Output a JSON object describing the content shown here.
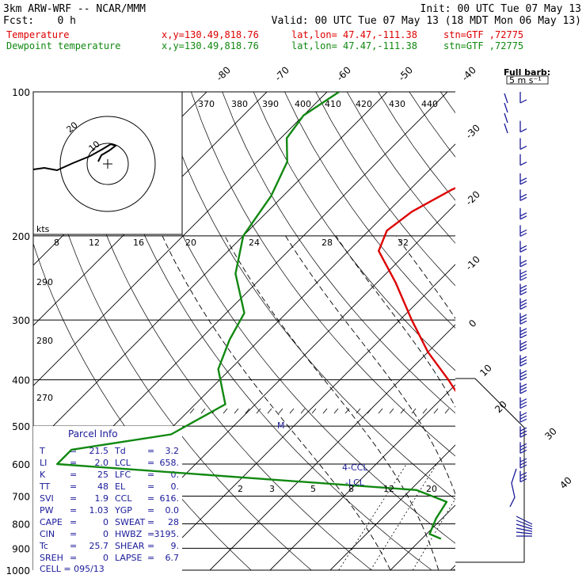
{
  "header": {
    "model": "3km ARW-WRF -- NCAR/MMM",
    "init": "Init: 00 UTC Tue 07 May 13",
    "fcst_label": "Fcst:",
    "fcst_value": "0 h",
    "valid": "Valid: 00 UTC Tue 07 May 13 (18 MDT Mon 06 May 13)"
  },
  "legend": [
    {
      "name": "Temperature",
      "xy": "x,y=130.49,818.76",
      "latlon": "lat,lon= 47.47,-111.38",
      "stn": "stn=GTF ,72775",
      "color": "#dd0000"
    },
    {
      "name": "Dewpoint temperature",
      "xy": "x,y=130.49,818.76",
      "latlon": "lat,lon= 47.47,-111.38",
      "stn": "stn=GTF ,72775",
      "color": "#118811"
    }
  ],
  "barb_key": {
    "title": "Full barb:",
    "value": "5 m s⁻¹"
  },
  "hodograph": {
    "units": "kts",
    "ring_labels": [
      "20",
      "10"
    ]
  },
  "parcel_info": {
    "title": "Parcel Info",
    "rows": [
      [
        "T",
        "21.5",
        "Td",
        "3.2"
      ],
      [
        "LI",
        "2.0",
        "LCL",
        "658."
      ],
      [
        "K",
        "25",
        "LFC",
        "0."
      ],
      [
        "TT",
        "48",
        "EL",
        "0."
      ],
      [
        "SVI",
        "1.9",
        "CCL",
        "616."
      ],
      [
        "PW",
        "1.03",
        "YGP",
        "0.0"
      ],
      [
        "CAPE",
        "0",
        "SWEAT",
        "28"
      ],
      [
        "CIN",
        "0",
        "HWBZ",
        "3195."
      ],
      [
        "Tc",
        "25.7",
        "SHEAR",
        "9."
      ],
      [
        "SREH",
        "0",
        "LAPSE",
        "6.7"
      ]
    ],
    "cell": "CELL = 095/13"
  },
  "markers": {
    "ccl": "CCL",
    "lcl": "LCL",
    "m": "M"
  },
  "chart_data": {
    "type": "line",
    "title": "",
    "xlabel": "Temperature",
    "ylabel": "Pressure",
    "y_scale": "log",
    "ylim": [
      1000,
      100
    ],
    "pressure_ticks": [
      "100",
      "200",
      "300",
      "400",
      "500",
      "600",
      "700",
      "800",
      "900",
      "1000"
    ],
    "isotherm_labels": [
      "-80",
      "-70",
      "-60",
      "-50",
      "-40",
      "-30",
      "-20",
      "-10",
      "0",
      "10",
      "20",
      "30",
      "40"
    ],
    "theta_labels_top": [
      "370",
      "380",
      "390",
      "400",
      "410",
      "420",
      "430",
      "440"
    ],
    "theta_labels_left": [
      "290",
      "280",
      "270"
    ],
    "mixing_ratio_labels_upper": [
      "8",
      "12",
      "16",
      "20",
      "24",
      "28",
      "32"
    ],
    "mixing_ratio_labels_lower": [
      "2",
      "3",
      "5",
      "8",
      "12",
      "20"
    ],
    "series": [
      {
        "name": "Temperature",
        "color": "#dd0000",
        "points": [
          {
            "p": 860,
            "t": 21.5
          },
          {
            "p": 800,
            "t": 17
          },
          {
            "p": 760,
            "t": 12
          },
          {
            "p": 700,
            "t": 6.5
          },
          {
            "p": 680,
            "t": 6
          },
          {
            "p": 600,
            "t": 0
          },
          {
            "p": 520,
            "t": -7
          },
          {
            "p": 460,
            "t": -14
          },
          {
            "p": 400,
            "t": -22
          },
          {
            "p": 350,
            "t": -30
          },
          {
            "p": 300,
            "t": -38
          },
          {
            "p": 250,
            "t": -47
          },
          {
            "p": 215,
            "t": -55
          },
          {
            "p": 195,
            "t": -57
          },
          {
            "p": 178,
            "t": -56
          },
          {
            "p": 160,
            "t": -53
          },
          {
            "p": 143,
            "t": -48
          },
          {
            "p": 127,
            "t": -46
          },
          {
            "p": 112,
            "t": -45
          },
          {
            "p": 100,
            "t": -44
          }
        ]
      },
      {
        "name": "Dewpoint temperature",
        "color": "#118811",
        "points": [
          {
            "p": 860,
            "t": 3.2
          },
          {
            "p": 840,
            "t": 0.5
          },
          {
            "p": 780,
            "t": -1
          },
          {
            "p": 720,
            "t": -2
          },
          {
            "p": 680,
            "t": -9
          },
          {
            "p": 640,
            "t": -40
          },
          {
            "p": 600,
            "t": -73
          },
          {
            "p": 560,
            "t": -73
          },
          {
            "p": 520,
            "t": -59
          },
          {
            "p": 450,
            "t": -55
          },
          {
            "p": 380,
            "t": -62
          },
          {
            "p": 330,
            "t": -65
          },
          {
            "p": 290,
            "t": -67
          },
          {
            "p": 240,
            "t": -75
          },
          {
            "p": 200,
            "t": -80
          },
          {
            "p": 165,
            "t": -82
          },
          {
            "p": 140,
            "t": -85
          },
          {
            "p": 125,
            "t": -89
          },
          {
            "p": 112,
            "t": -90
          },
          {
            "p": 100,
            "t": -88
          }
        ]
      }
    ]
  }
}
